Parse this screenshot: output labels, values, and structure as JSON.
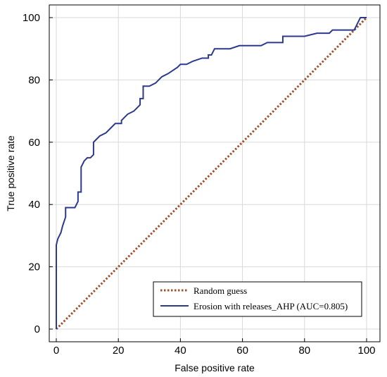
{
  "chart_data": {
    "type": "line",
    "xlabel": "False positive rate",
    "ylabel": "True positive rate",
    "xlim": [
      0,
      100
    ],
    "ylim": [
      0,
      100
    ],
    "xticks": [
      "0",
      "20",
      "40",
      "60",
      "80",
      "100"
    ],
    "yticks": [
      "0",
      "20",
      "40",
      "60",
      "80",
      "100"
    ],
    "grid": true,
    "legend_position": "bottom-right",
    "colors": {
      "roc": "#2b3a8c",
      "random": "#a0522d",
      "grid": "#d9d9d9"
    },
    "series": [
      {
        "name": "Random guess",
        "style": "dotted",
        "x": [
          0,
          100
        ],
        "y": [
          0,
          100
        ]
      },
      {
        "name": "Erosion with releases_AHP (AUC=0.805)",
        "style": "solid",
        "x": [
          0,
          0,
          0.5,
          1.5,
          2,
          2,
          3,
          3,
          6,
          7,
          7,
          8,
          8,
          9,
          10,
          11,
          12,
          12,
          13,
          14,
          16,
          17,
          19,
          21,
          21,
          22,
          23,
          23,
          25,
          26,
          27,
          27,
          28,
          28,
          30,
          32,
          34,
          36,
          39,
          39,
          40,
          42,
          44,
          47,
          49,
          49,
          50,
          51,
          53,
          56,
          59,
          62,
          66,
          68,
          73,
          73,
          75,
          79,
          80,
          84,
          88,
          89,
          94,
          96,
          97,
          97,
          98,
          100,
          100
        ],
        "y": [
          0,
          27,
          29,
          31,
          33,
          33,
          36,
          39,
          39,
          41,
          44,
          44,
          52,
          54,
          55,
          55,
          56,
          60,
          61,
          62,
          63,
          64,
          66,
          66,
          67,
          68,
          69,
          69,
          70,
          71,
          72,
          74,
          74,
          78,
          78,
          79,
          81,
          82,
          84,
          84,
          85,
          85,
          86,
          87,
          87,
          88,
          88,
          90,
          90,
          90,
          91,
          91,
          91,
          92,
          92,
          94,
          94,
          94,
          94,
          95,
          95,
          96,
          96,
          96,
          98,
          98,
          100,
          100,
          100
        ]
      }
    ]
  }
}
